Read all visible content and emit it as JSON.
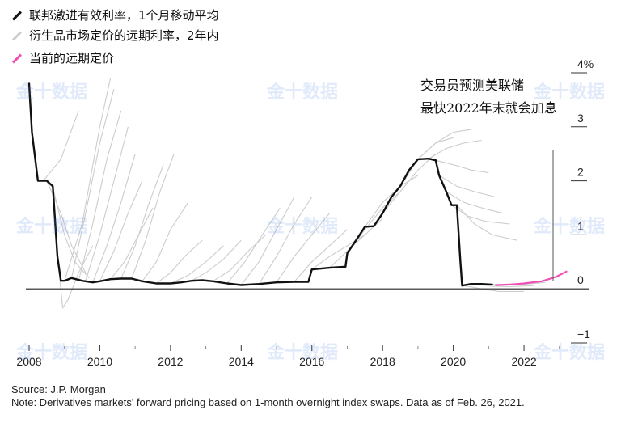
{
  "legend": [
    {
      "label": "联邦激进有效利率，1个月移动平均",
      "color": "#111111"
    },
    {
      "label": "衍生品市场定价的远期利率，2年内",
      "color": "#cccccc"
    },
    {
      "label": "当前的远期定价",
      "color": "#f050b4"
    }
  ],
  "annotation": {
    "line1": "交易员预测美联储",
    "line2": "最快2022年末就会加息"
  },
  "source": "Source: J.P. Morgan",
  "note": "Note: Derivatives markets' forward pricing based on 1-month overnight index swaps. Data as of Feb. 26, 2021.",
  "watermark": "金十数据",
  "chart_data": {
    "type": "line",
    "xlim": [
      2008,
      2023.6
    ],
    "ylim": [
      -1,
      4
    ],
    "y_ticks": [
      {
        "value": 4,
        "label": "4%"
      },
      {
        "value": 3,
        "label": "3"
      },
      {
        "value": 2,
        "label": "2"
      },
      {
        "value": 1,
        "label": "1"
      },
      {
        "value": 0,
        "label": "0"
      },
      {
        "value": -1,
        "label": "−1"
      }
    ],
    "x_ticks": [
      {
        "value": 2008,
        "label": "2008"
      },
      {
        "value": 2010,
        "label": "2010"
      },
      {
        "value": 2012,
        "label": "2012"
      },
      {
        "value": 2014,
        "label": "2014"
      },
      {
        "value": 2016,
        "label": "2016"
      },
      {
        "value": 2018,
        "label": "2018"
      },
      {
        "value": 2020,
        "label": "2020"
      },
      {
        "value": 2022,
        "label": "2022"
      }
    ],
    "series": [
      {
        "name": "联邦激进有效利率，1个月移动平均",
        "color": "#111111",
        "points": [
          [
            2008.0,
            3.8
          ],
          [
            2008.08,
            2.9
          ],
          [
            2008.25,
            2.0
          ],
          [
            2008.5,
            2.0
          ],
          [
            2008.67,
            1.9
          ],
          [
            2008.8,
            0.6
          ],
          [
            2008.9,
            0.15
          ],
          [
            2009.0,
            0.15
          ],
          [
            2009.2,
            0.2
          ],
          [
            2009.5,
            0.15
          ],
          [
            2009.8,
            0.12
          ],
          [
            2010.0,
            0.14
          ],
          [
            2010.3,
            0.18
          ],
          [
            2010.6,
            0.19
          ],
          [
            2010.9,
            0.19
          ],
          [
            2011.2,
            0.14
          ],
          [
            2011.6,
            0.1
          ],
          [
            2012.0,
            0.1
          ],
          [
            2012.3,
            0.12
          ],
          [
            2012.6,
            0.15
          ],
          [
            2012.9,
            0.16
          ],
          [
            2013.2,
            0.14
          ],
          [
            2013.6,
            0.1
          ],
          [
            2014.0,
            0.07
          ],
          [
            2014.5,
            0.09
          ],
          [
            2015.0,
            0.12
          ],
          [
            2015.5,
            0.13
          ],
          [
            2015.9,
            0.13
          ],
          [
            2016.0,
            0.36
          ],
          [
            2016.5,
            0.39
          ],
          [
            2016.95,
            0.41
          ],
          [
            2017.0,
            0.66
          ],
          [
            2017.25,
            0.9
          ],
          [
            2017.5,
            1.15
          ],
          [
            2017.75,
            1.16
          ],
          [
            2018.0,
            1.4
          ],
          [
            2018.25,
            1.7
          ],
          [
            2018.5,
            1.9
          ],
          [
            2018.75,
            2.2
          ],
          [
            2019.0,
            2.4
          ],
          [
            2019.3,
            2.41
          ],
          [
            2019.5,
            2.38
          ],
          [
            2019.6,
            2.1
          ],
          [
            2019.8,
            1.8
          ],
          [
            2019.95,
            1.55
          ],
          [
            2020.1,
            1.55
          ],
          [
            2020.2,
            0.5
          ],
          [
            2020.25,
            0.06
          ],
          [
            2020.5,
            0.09
          ],
          [
            2020.8,
            0.09
          ],
          [
            2021.1,
            0.08
          ]
        ]
      },
      {
        "name": "当前的远期定价",
        "color": "#f050b4",
        "points": [
          [
            2021.2,
            0.07
          ],
          [
            2021.6,
            0.08
          ],
          [
            2022.0,
            0.1
          ],
          [
            2022.5,
            0.14
          ],
          [
            2022.9,
            0.22
          ],
          [
            2023.2,
            0.32
          ]
        ]
      }
    ],
    "forward_curves_color": "#cccccc",
    "forward_curves": [
      [
        [
          2008.4,
          2.0
        ],
        [
          2008.9,
          2.4
        ],
        [
          2009.4,
          3.3
        ]
      ],
      [
        [
          2008.5,
          2.0
        ],
        [
          2008.9,
          1.4
        ],
        [
          2009.2,
          0.8
        ],
        [
          2009.6,
          0.3
        ]
      ],
      [
        [
          2008.7,
          1.8
        ],
        [
          2009.0,
          1.0
        ],
        [
          2009.3,
          0.5
        ],
        [
          2009.7,
          0.2
        ]
      ],
      [
        [
          2008.85,
          0.3
        ],
        [
          2008.95,
          -0.35
        ],
        [
          2009.1,
          -0.2
        ],
        [
          2009.4,
          0.3
        ],
        [
          2009.8,
          0.8
        ]
      ],
      [
        [
          2009.0,
          0.15
        ],
        [
          2009.5,
          1.2
        ],
        [
          2010.0,
          3.0
        ],
        [
          2010.3,
          3.9
        ]
      ],
      [
        [
          2009.2,
          0.2
        ],
        [
          2009.6,
          1.4
        ],
        [
          2010.0,
          2.7
        ],
        [
          2010.4,
          3.7
        ]
      ],
      [
        [
          2009.4,
          0.15
        ],
        [
          2009.8,
          1.2
        ],
        [
          2010.2,
          2.4
        ],
        [
          2010.6,
          3.3
        ]
      ],
      [
        [
          2009.6,
          0.15
        ],
        [
          2010.0,
          1.0
        ],
        [
          2010.4,
          2.0
        ],
        [
          2010.8,
          3.0
        ]
      ],
      [
        [
          2009.8,
          0.12
        ],
        [
          2010.2,
          0.8
        ],
        [
          2010.6,
          1.6
        ],
        [
          2011.0,
          2.5
        ]
      ],
      [
        [
          2010.0,
          0.14
        ],
        [
          2010.4,
          0.7
        ],
        [
          2010.8,
          1.4
        ],
        [
          2011.2,
          2.0
        ]
      ],
      [
        [
          2010.3,
          0.18
        ],
        [
          2010.7,
          0.5
        ],
        [
          2011.1,
          1.0
        ],
        [
          2011.5,
          1.5
        ]
      ],
      [
        [
          2010.6,
          0.19
        ],
        [
          2011.0,
          0.8
        ],
        [
          2011.4,
          1.6
        ],
        [
          2011.8,
          2.3
        ]
      ],
      [
        [
          2010.9,
          0.19
        ],
        [
          2011.3,
          0.9
        ],
        [
          2011.7,
          1.8
        ],
        [
          2012.1,
          2.5
        ]
      ],
      [
        [
          2011.2,
          0.14
        ],
        [
          2011.6,
          0.5
        ],
        [
          2012.0,
          1.1
        ],
        [
          2012.5,
          1.6
        ]
      ],
      [
        [
          2011.6,
          0.1
        ],
        [
          2012.0,
          0.3
        ],
        [
          2012.4,
          0.6
        ],
        [
          2012.9,
          0.9
        ]
      ],
      [
        [
          2012.0,
          0.1
        ],
        [
          2012.5,
          0.25
        ],
        [
          2013.0,
          0.5
        ],
        [
          2013.5,
          0.8
        ]
      ],
      [
        [
          2012.6,
          0.15
        ],
        [
          2013.0,
          0.3
        ],
        [
          2013.5,
          0.55
        ],
        [
          2014.0,
          0.9
        ]
      ],
      [
        [
          2013.2,
          0.14
        ],
        [
          2013.7,
          0.35
        ],
        [
          2014.2,
          0.7
        ],
        [
          2014.7,
          1.0
        ]
      ],
      [
        [
          2013.6,
          0.1
        ],
        [
          2014.1,
          0.5
        ],
        [
          2014.6,
          1.0
        ],
        [
          2015.1,
          1.5
        ]
      ],
      [
        [
          2014.0,
          0.07
        ],
        [
          2014.5,
          0.5
        ],
        [
          2015.0,
          1.1
        ],
        [
          2015.5,
          1.7
        ]
      ],
      [
        [
          2014.5,
          0.09
        ],
        [
          2015.0,
          0.6
        ],
        [
          2015.5,
          1.2
        ],
        [
          2016.0,
          1.7
        ]
      ],
      [
        [
          2015.0,
          0.12
        ],
        [
          2015.5,
          0.6
        ],
        [
          2016.0,
          1.0
        ],
        [
          2016.5,
          1.4
        ]
      ],
      [
        [
          2015.5,
          0.13
        ],
        [
          2016.0,
          0.5
        ],
        [
          2016.5,
          0.8
        ],
        [
          2017.0,
          1.1
        ]
      ],
      [
        [
          2016.0,
          0.36
        ],
        [
          2016.5,
          0.6
        ],
        [
          2017.0,
          0.8
        ],
        [
          2017.5,
          1.0
        ]
      ],
      [
        [
          2016.5,
          0.39
        ],
        [
          2017.0,
          0.7
        ],
        [
          2017.5,
          1.0
        ],
        [
          2018.0,
          1.3
        ]
      ],
      [
        [
          2017.0,
          0.66
        ],
        [
          2017.5,
          1.1
        ],
        [
          2018.0,
          1.5
        ],
        [
          2018.5,
          1.8
        ]
      ],
      [
        [
          2017.5,
          1.15
        ],
        [
          2018.0,
          1.6
        ],
        [
          2018.5,
          1.9
        ],
        [
          2019.0,
          2.1
        ]
      ],
      [
        [
          2018.0,
          1.4
        ],
        [
          2018.5,
          1.8
        ],
        [
          2019.0,
          2.2
        ],
        [
          2019.5,
          2.5
        ]
      ],
      [
        [
          2018.5,
          1.9
        ],
        [
          2019.0,
          2.4
        ],
        [
          2019.5,
          2.7
        ],
        [
          2020.0,
          2.8
        ]
      ],
      [
        [
          2019.0,
          2.4
        ],
        [
          2019.5,
          2.7
        ],
        [
          2020.0,
          2.9
        ],
        [
          2020.5,
          2.95
        ]
      ],
      [
        [
          2019.3,
          2.41
        ],
        [
          2019.8,
          2.6
        ],
        [
          2020.3,
          2.7
        ],
        [
          2020.8,
          2.75
        ]
      ],
      [
        [
          2019.5,
          2.38
        ],
        [
          2020.0,
          2.3
        ],
        [
          2020.5,
          2.2
        ],
        [
          2021.0,
          2.15
        ]
      ],
      [
        [
          2019.6,
          2.1
        ],
        [
          2020.1,
          1.9
        ],
        [
          2020.6,
          1.8
        ],
        [
          2021.2,
          1.7
        ]
      ],
      [
        [
          2019.8,
          1.8
        ],
        [
          2020.3,
          1.6
        ],
        [
          2020.8,
          1.5
        ],
        [
          2021.4,
          1.4
        ]
      ],
      [
        [
          2019.95,
          1.55
        ],
        [
          2020.4,
          1.35
        ],
        [
          2020.9,
          1.25
        ],
        [
          2021.6,
          1.2
        ]
      ],
      [
        [
          2020.1,
          1.55
        ],
        [
          2020.6,
          1.2
        ],
        [
          2021.1,
          1.0
        ],
        [
          2021.8,
          0.9
        ]
      ],
      [
        [
          2020.3,
          0.06
        ],
        [
          2020.8,
          0.0
        ],
        [
          2021.3,
          -0.05
        ],
        [
          2022.0,
          -0.05
        ]
      ],
      [
        [
          2020.6,
          0.09
        ],
        [
          2021.1,
          0.05
        ],
        [
          2021.6,
          0.04
        ],
        [
          2022.3,
          0.06
        ]
      ],
      [
        [
          2020.9,
          0.09
        ],
        [
          2021.4,
          0.07
        ],
        [
          2021.9,
          0.08
        ],
        [
          2022.6,
          0.12
        ]
      ]
    ]
  }
}
